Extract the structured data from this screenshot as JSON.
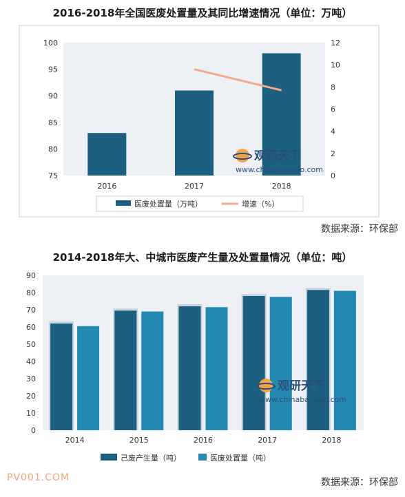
{
  "chart_data": [
    {
      "type": "bar",
      "title": "2016-2018年全国医废处置量及其同比增速情况（单位：万吨）",
      "categories": [
        "2016",
        "2017",
        "2018"
      ],
      "series": [
        {
          "name": "医废处置量（万吨）",
          "type": "bar",
          "axis": "left",
          "values": [
            83,
            91,
            98
          ],
          "color": "#1c5f80"
        },
        {
          "name": "增速（%）",
          "type": "line",
          "axis": "right",
          "values": [
            null,
            9.6,
            7.7
          ],
          "color": "#f2a98a"
        }
      ],
      "ylim_left": [
        75,
        100
      ],
      "yticks_left": [
        "100",
        "95",
        "90",
        "85",
        "80",
        "75"
      ],
      "ylim_right": [
        0,
        12
      ],
      "yticks_right": [
        "12",
        "10",
        "8",
        "6",
        "4",
        "2",
        "0"
      ],
      "grid": false,
      "legend_position": "bottom",
      "source": "数据来源：环保部"
    },
    {
      "type": "bar",
      "title": "2014-2018年大、中城市医废产生量及处置量情况（单位：吨）",
      "categories": [
        "2014",
        "2015",
        "2016",
        "2017",
        "2018"
      ],
      "series": [
        {
          "name": "己废产生量（吨）",
          "values": [
            62,
            69.5,
            72,
            78,
            81.5
          ],
          "color": "#1c5f80"
        },
        {
          "name": "医废处置量（吨）",
          "values": [
            60.5,
            69,
            71.5,
            77.5,
            81
          ],
          "color": "#2389b0"
        }
      ],
      "ylim": [
        0,
        90
      ],
      "yticks": [
        "90",
        "80",
        "70",
        "60",
        "50",
        "40",
        "30",
        "20",
        "10",
        "0"
      ],
      "grid": false,
      "legend_position": "bottom",
      "source": "数据来源：环保部"
    }
  ],
  "watermark": {
    "cn": "观研天下",
    "en": "www.chinabaogao.com"
  },
  "footer_logo": "PV001.COM"
}
